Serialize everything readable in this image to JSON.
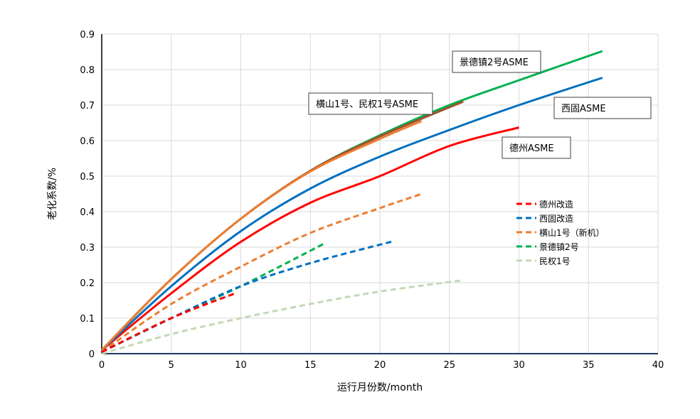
{
  "chart_data": {
    "type": "line",
    "title": "",
    "xlabel": "运行月份数/month",
    "ylabel": "老化系数/%",
    "xlim": [
      0,
      40
    ],
    "ylim": [
      0,
      0.9
    ],
    "xticks": [
      0,
      5,
      10,
      15,
      20,
      25,
      30,
      35,
      40
    ],
    "yticks": [
      0,
      0.1,
      0.2,
      0.3,
      0.4,
      0.5,
      0.6,
      0.7,
      0.8,
      0.9
    ],
    "grid": true,
    "legend_placement": "right",
    "series": [
      {
        "name": "景德镇2号ASME",
        "color": "#00B050",
        "style": "solid",
        "in_legend": false,
        "x": [
          0,
          5,
          10,
          15,
          20,
          25,
          30,
          36
        ],
        "y": [
          0.01,
          0.21,
          0.38,
          0.515,
          0.615,
          0.7,
          0.77,
          0.852
        ]
      },
      {
        "name": "西固ASME",
        "color": "#0070C0",
        "style": "solid",
        "in_legend": false,
        "x": [
          0,
          5,
          10,
          15,
          20,
          25,
          30,
          36
        ],
        "y": [
          0.01,
          0.19,
          0.345,
          0.465,
          0.555,
          0.63,
          0.7,
          0.777
        ]
      },
      {
        "name": "德州ASME",
        "color": "#FF0000",
        "style": "solid",
        "in_legend": false,
        "x": [
          0,
          5,
          10,
          15,
          20,
          25,
          30
        ],
        "y": [
          0.01,
          0.17,
          0.315,
          0.425,
          0.5,
          0.585,
          0.637
        ]
      },
      {
        "name": "横山1号ASME",
        "color": "#ED7D31",
        "style": "solid",
        "in_legend": false,
        "x": [
          0,
          5,
          10,
          15,
          20,
          23
        ],
        "y": [
          0.01,
          0.21,
          0.38,
          0.513,
          0.605,
          0.655
        ]
      },
      {
        "name": "民权1号ASME",
        "color": "#A0522D",
        "style": "solid",
        "in_legend": false,
        "x": [
          0,
          5,
          10,
          15,
          20,
          26
        ],
        "y": [
          0.01,
          0.21,
          0.38,
          0.515,
          0.612,
          0.71
        ]
      },
      {
        "name": "德州改造",
        "color": "#FF0000",
        "style": "dashed",
        "in_legend": true,
        "x": [
          0,
          5,
          9.6
        ],
        "y": [
          0.005,
          0.1,
          0.17
        ]
      },
      {
        "name": "西固改造",
        "color": "#0070C0",
        "style": "dashed",
        "in_legend": true,
        "x": [
          0,
          5,
          10,
          15,
          21
        ],
        "y": [
          0.005,
          0.1,
          0.19,
          0.255,
          0.317
        ]
      },
      {
        "name": "横山1号（新机）",
        "color": "#ED7D31",
        "style": "dashed",
        "in_legend": true,
        "x": [
          0,
          5,
          10,
          15,
          20,
          23
        ],
        "y": [
          0.005,
          0.14,
          0.245,
          0.34,
          0.41,
          0.45
        ]
      },
      {
        "name": "景德镇2号",
        "color": "#00B050",
        "style": "dashed",
        "in_legend": true,
        "x": [
          0,
          5,
          10,
          16
        ],
        "y": [
          0.005,
          0.1,
          0.19,
          0.31
        ]
      },
      {
        "name": "民权1号",
        "color": "#C5D9B5",
        "style": "dashed",
        "in_legend": true,
        "x": [
          0,
          5,
          10,
          15,
          20,
          26
        ],
        "y": [
          0.0,
          0.055,
          0.1,
          0.14,
          0.175,
          0.207
        ]
      }
    ],
    "annotations": [
      {
        "text": "景德镇2号ASME"
      },
      {
        "text": "横山1号、民权1号ASME"
      },
      {
        "text": "西固ASME"
      },
      {
        "text": "德州ASME"
      }
    ]
  }
}
